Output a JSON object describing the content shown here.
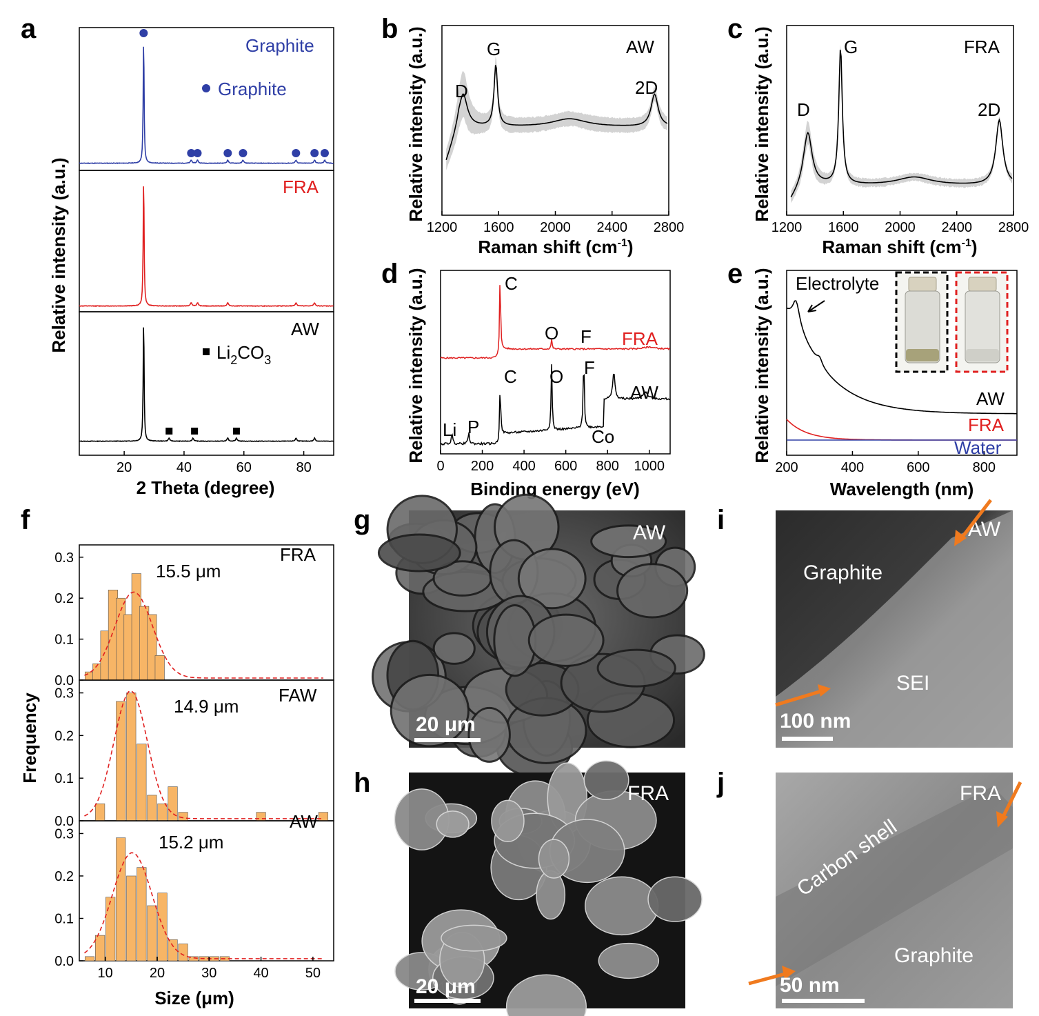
{
  "panels": {
    "a": {
      "letter": "a",
      "xlabel": "2 Theta (degree)",
      "ylabel": "Relative intensity (a.u.)",
      "xlim": [
        5,
        90
      ],
      "xticks": [
        20,
        40,
        60,
        80
      ],
      "subpanels": [
        {
          "label": "Graphite",
          "color": "#2f3fa6",
          "peak_x": 26.5,
          "minor_peaks": [
            42.4,
            44.5,
            54.6,
            59.7,
            77.4,
            83.6,
            87.0
          ],
          "marker": "circle",
          "marker_x": [
            26.5,
            42.4,
            44.5,
            54.6,
            59.7,
            77.4,
            83.6,
            87.0
          ],
          "legend_text": "Graphite"
        },
        {
          "label": "FRA",
          "color": "#e02020",
          "peak_x": 26.5,
          "minor_peaks": [
            42.4,
            44.5,
            54.6,
            77.4,
            83.6
          ]
        },
        {
          "label": "AW",
          "color": "#000000",
          "peak_x": 26.5,
          "minor_peaks": [
            35,
            43,
            54.6,
            57.5,
            77.4,
            83.6
          ],
          "marker": "square",
          "marker_x": [
            35,
            43.5,
            57.5
          ],
          "legend_text_main": "Li",
          "legend_sub1": "2",
          "legend_text_mid": "CO",
          "legend_sub2": "3"
        }
      ]
    },
    "b": {
      "letter": "b",
      "tag": "AW",
      "xlabel_main": "Raman shift (cm",
      "xlabel_sup": "-1",
      "xlabel_end": ")",
      "ylabel": "Relative intensity (a.u.)",
      "xlim": [
        1200,
        2800
      ],
      "xticks": [
        1200,
        1600,
        2000,
        2400,
        2800
      ],
      "peaks": {
        "D": 1350,
        "G": 1580,
        "2D": 2700
      },
      "peak_labels": [
        "D",
        "G",
        "2D"
      ]
    },
    "c": {
      "letter": "c",
      "tag": "FRA",
      "xlabel_main": "Raman shift (cm",
      "xlabel_sup": "-1",
      "xlabel_end": ")",
      "ylabel": "Relative intensity (a.u.)",
      "xlim": [
        1200,
        2800
      ],
      "xticks": [
        1200,
        1600,
        2000,
        2400,
        2800
      ],
      "peaks": {
        "D": 1350,
        "G": 1580,
        "2D": 2700
      },
      "peak_labels": [
        "D",
        "G",
        "2D"
      ]
    },
    "d": {
      "letter": "d",
      "xlabel": "Binding energy (eV)",
      "ylabel": "Relative intensity (a.u.)",
      "xlim": [
        0,
        1100
      ],
      "xticks": [
        0,
        200,
        400,
        600,
        800,
        1000
      ],
      "fra_label": "FRA",
      "aw_label": "AW",
      "fra_peaks": [
        "C",
        "O",
        "F"
      ],
      "aw_peaks": [
        "Li",
        "P",
        "C",
        "O",
        "F",
        "Co"
      ]
    },
    "e": {
      "letter": "e",
      "xlabel": "Wavelength (nm)",
      "ylabel": "Relative intensity (a.u.)",
      "xlim": [
        200,
        900
      ],
      "xticks": [
        200,
        400,
        600,
        800
      ],
      "series": [
        {
          "name": "AW",
          "color": "#000000"
        },
        {
          "name": "FRA",
          "color": "#e02020"
        },
        {
          "name": "Water",
          "color": "#2f3fa6"
        }
      ],
      "annotation": "Electrolyte"
    },
    "f": {
      "letter": "f",
      "xlabel": "Size (μm)",
      "ylabel": "Frequency",
      "xlim": [
        5,
        54
      ],
      "xticks": [
        10,
        20,
        30,
        40,
        50
      ],
      "ylim": [
        0,
        0.33
      ],
      "yticks": [
        "0.0",
        "0.1",
        "0.2",
        "0.3"
      ],
      "bar_color": "#f7b566",
      "fit_color": "#e02020",
      "subpanels": [
        {
          "label": "FRA",
          "mean_text": "15.5 μm",
          "mean": 15.5,
          "sigma": 3.6,
          "amp": 0.21,
          "x": [
            7,
            8.5,
            10,
            11.5,
            13,
            14.5,
            16,
            17.5,
            19,
            20.5
          ],
          "values": [
            0.02,
            0.04,
            0.12,
            0.22,
            0.2,
            0.16,
            0.26,
            0.18,
            0.16,
            0.06
          ]
        },
        {
          "label": "FAW",
          "mean_text": "14.9 μm",
          "mean": 14.9,
          "sigma": 3.2,
          "amp": 0.3,
          "x": [
            9,
            13,
            15,
            17,
            19,
            21,
            23,
            25,
            40,
            52
          ],
          "values": [
            0.04,
            0.28,
            0.3,
            0.18,
            0.06,
            0.04,
            0.08,
            0.02,
            0.02,
            0.02
          ]
        },
        {
          "label": "AW",
          "mean_text": "15.2 μm",
          "mean": 15.2,
          "sigma": 3.8,
          "amp": 0.25,
          "x": [
            7,
            9,
            11,
            13,
            15,
            17,
            19,
            21,
            23,
            25,
            27,
            29,
            31,
            33
          ],
          "values": [
            0.01,
            0.06,
            0.15,
            0.29,
            0.2,
            0.22,
            0.13,
            0.16,
            0.05,
            0.04,
            0.01,
            0.01,
            0.01,
            0.01
          ]
        }
      ]
    },
    "g": {
      "letter": "g",
      "tag": "AW",
      "scale": "20 μm"
    },
    "h": {
      "letter": "h",
      "tag": "FRA",
      "scale": "20 μm"
    },
    "i": {
      "letter": "i",
      "tag": "AW",
      "scale": "100 nm",
      "labels": [
        "Graphite",
        "SEI"
      ]
    },
    "j": {
      "letter": "j",
      "tag": "FRA",
      "scale": "50 nm",
      "labels": [
        "Carbon shell",
        "Graphite"
      ]
    }
  },
  "chart_data": [
    {
      "type": "line",
      "title": "",
      "xlabel": "2 Theta (degree)",
      "ylabel": "Relative intensity (a.u.)",
      "xlim": [
        5,
        90
      ],
      "series": [
        {
          "name": "Graphite",
          "peaks_x": [
            26.5,
            42.4,
            44.5,
            54.6,
            59.7,
            77.4,
            83.6,
            87.0
          ]
        },
        {
          "name": "FRA",
          "peaks_x": [
            26.5,
            42.4,
            44.5,
            54.6,
            77.4,
            83.6
          ]
        },
        {
          "name": "AW",
          "peaks_x": [
            26.5,
            35,
            43,
            54.6,
            57.5,
            77.4,
            83.6
          ]
        }
      ]
    },
    {
      "type": "line",
      "xlabel": "Raman shift (cm-1)",
      "ylabel": "Relative intensity (a.u.)",
      "xlim": [
        1200,
        2800
      ],
      "series": [
        {
          "name": "AW",
          "peaks_x": [
            1350,
            1580,
            2700
          ]
        }
      ]
    },
    {
      "type": "line",
      "xlabel": "Raman shift (cm-1)",
      "ylabel": "Relative intensity (a.u.)",
      "xlim": [
        1200,
        2800
      ],
      "series": [
        {
          "name": "FRA",
          "peaks_x": [
            1350,
            1580,
            2700
          ]
        }
      ]
    },
    {
      "type": "line",
      "xlabel": "Binding energy (eV)",
      "ylabel": "Relative intensity (a.u.)",
      "xlim": [
        0,
        1100
      ],
      "series": [
        {
          "name": "FRA",
          "peaks_x": [
            285,
            532,
            686
          ]
        },
        {
          "name": "AW",
          "peaks_x": [
            55,
            135,
            285,
            532,
            686,
            780
          ]
        }
      ]
    },
    {
      "type": "line",
      "xlabel": "Wavelength (nm)",
      "ylabel": "Relative intensity (a.u.)",
      "xlim": [
        200,
        900
      ],
      "series": [
        {
          "name": "AW"
        },
        {
          "name": "FRA"
        },
        {
          "name": "Water"
        }
      ]
    },
    {
      "type": "bar",
      "xlabel": "Size (μm)",
      "ylabel": "Frequency",
      "ylim": [
        0,
        0.33
      ],
      "series": [
        {
          "name": "FRA",
          "x": [
            7,
            8.5,
            10,
            11.5,
            13,
            14.5,
            16,
            17.5,
            19,
            20.5
          ],
          "values": [
            0.02,
            0.04,
            0.12,
            0.22,
            0.2,
            0.16,
            0.26,
            0.18,
            0.16,
            0.06
          ]
        },
        {
          "name": "FAW",
          "x": [
            9,
            13,
            15,
            17,
            19,
            21,
            23,
            25,
            40,
            52
          ],
          "values": [
            0.04,
            0.28,
            0.3,
            0.18,
            0.06,
            0.04,
            0.08,
            0.02,
            0.02,
            0.02
          ]
        },
        {
          "name": "AW",
          "x": [
            7,
            9,
            11,
            13,
            15,
            17,
            19,
            21,
            23,
            25,
            27,
            29,
            31,
            33
          ],
          "values": [
            0.01,
            0.06,
            0.15,
            0.29,
            0.2,
            0.22,
            0.13,
            0.16,
            0.05,
            0.04,
            0.01,
            0.01,
            0.01,
            0.01
          ]
        }
      ]
    }
  ]
}
